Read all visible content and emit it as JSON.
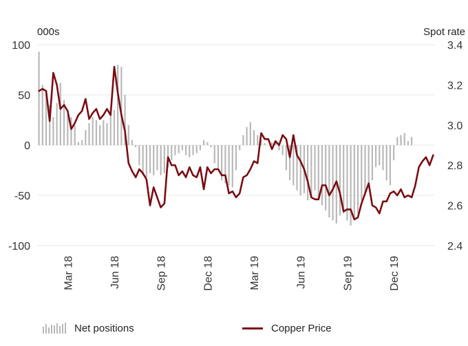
{
  "chart_data": {
    "type": "bar+line",
    "left_axis_label": "000s",
    "right_axis_label": "Spot rate",
    "left_ylim": [
      -100,
      100
    ],
    "left_ticks": [
      "-100",
      "-50",
      "0",
      "50",
      "100"
    ],
    "right_ylim": [
      2.4,
      3.4
    ],
    "right_ticks": [
      "2.4",
      "2.6",
      "2.8",
      "3.0",
      "3.2",
      "3.4"
    ],
    "x_tick_labels": [
      "Mar 18",
      "Jun 18",
      "Sep 18",
      "Dec 18",
      "Mar 19",
      "Jun 19",
      "Sep 19",
      "Dec 19"
    ],
    "x_tick_weeks": [
      8,
      21,
      34,
      47,
      60,
      73,
      86,
      99
    ],
    "grid": "horizontal",
    "legend_position": "bottom",
    "series": [
      {
        "name": "Net positions",
        "kind": "bar",
        "axis": "left",
        "color": "#b8b8b8",
        "values": [
          93,
          60,
          55,
          40,
          28,
          42,
          62,
          45,
          30,
          28,
          20,
          3,
          5,
          15,
          22,
          28,
          25,
          20,
          25,
          22,
          30,
          35,
          80,
          78,
          50,
          20,
          5,
          -2,
          -20,
          -30,
          -32,
          -28,
          -30,
          -25,
          -30,
          -28,
          -22,
          -15,
          -10,
          -8,
          -5,
          -10,
          -12,
          -10,
          -8,
          -5,
          5,
          3,
          -2,
          -18,
          -25,
          -35,
          -38,
          -40,
          -42,
          -25,
          -5,
          10,
          18,
          23,
          15,
          10,
          5,
          2,
          0,
          3,
          5,
          -5,
          -10,
          -25,
          -35,
          -40,
          -45,
          -50,
          -48,
          -55,
          -52,
          -45,
          -55,
          -60,
          -65,
          -72,
          -75,
          -78,
          -70,
          -68,
          -75,
          -80,
          -73,
          -68,
          -55,
          -48,
          -40,
          -35,
          -22,
          -20,
          -25,
          -35,
          -40,
          -15,
          8,
          10,
          12,
          4,
          8
        ]
      },
      {
        "name": "Copper Price",
        "kind": "line",
        "axis": "right",
        "color": "#7a0c12",
        "values": [
          3.17,
          3.18,
          3.17,
          3.02,
          3.26,
          3.2,
          3.08,
          3.1,
          3.07,
          2.98,
          3.01,
          3.05,
          3.07,
          3.13,
          3.03,
          3.06,
          3.08,
          3.03,
          3.05,
          3.08,
          3.05,
          3.29,
          3.16,
          3.05,
          2.97,
          2.81,
          2.77,
          2.74,
          2.78,
          2.76,
          2.73,
          2.6,
          2.69,
          2.64,
          2.59,
          2.61,
          2.84,
          2.8,
          2.8,
          2.75,
          2.77,
          2.74,
          2.79,
          2.75,
          2.74,
          2.79,
          2.68,
          2.79,
          2.76,
          2.78,
          2.78,
          2.75,
          2.75,
          2.66,
          2.67,
          2.64,
          2.66,
          2.74,
          2.75,
          2.78,
          2.82,
          2.81,
          2.96,
          2.93,
          2.93,
          2.88,
          2.92,
          2.9,
          2.95,
          2.93,
          2.84,
          2.95,
          2.85,
          2.82,
          2.78,
          2.72,
          2.64,
          2.63,
          2.63,
          2.7,
          2.7,
          2.65,
          2.68,
          2.72,
          2.66,
          2.57,
          2.58,
          2.58,
          2.53,
          2.54,
          2.61,
          2.66,
          2.71,
          2.6,
          2.59,
          2.56,
          2.62,
          2.62,
          2.66,
          2.67,
          2.65,
          2.68,
          2.64,
          2.65,
          2.64,
          2.7,
          2.79,
          2.82,
          2.84,
          2.8,
          2.85
        ]
      }
    ]
  }
}
